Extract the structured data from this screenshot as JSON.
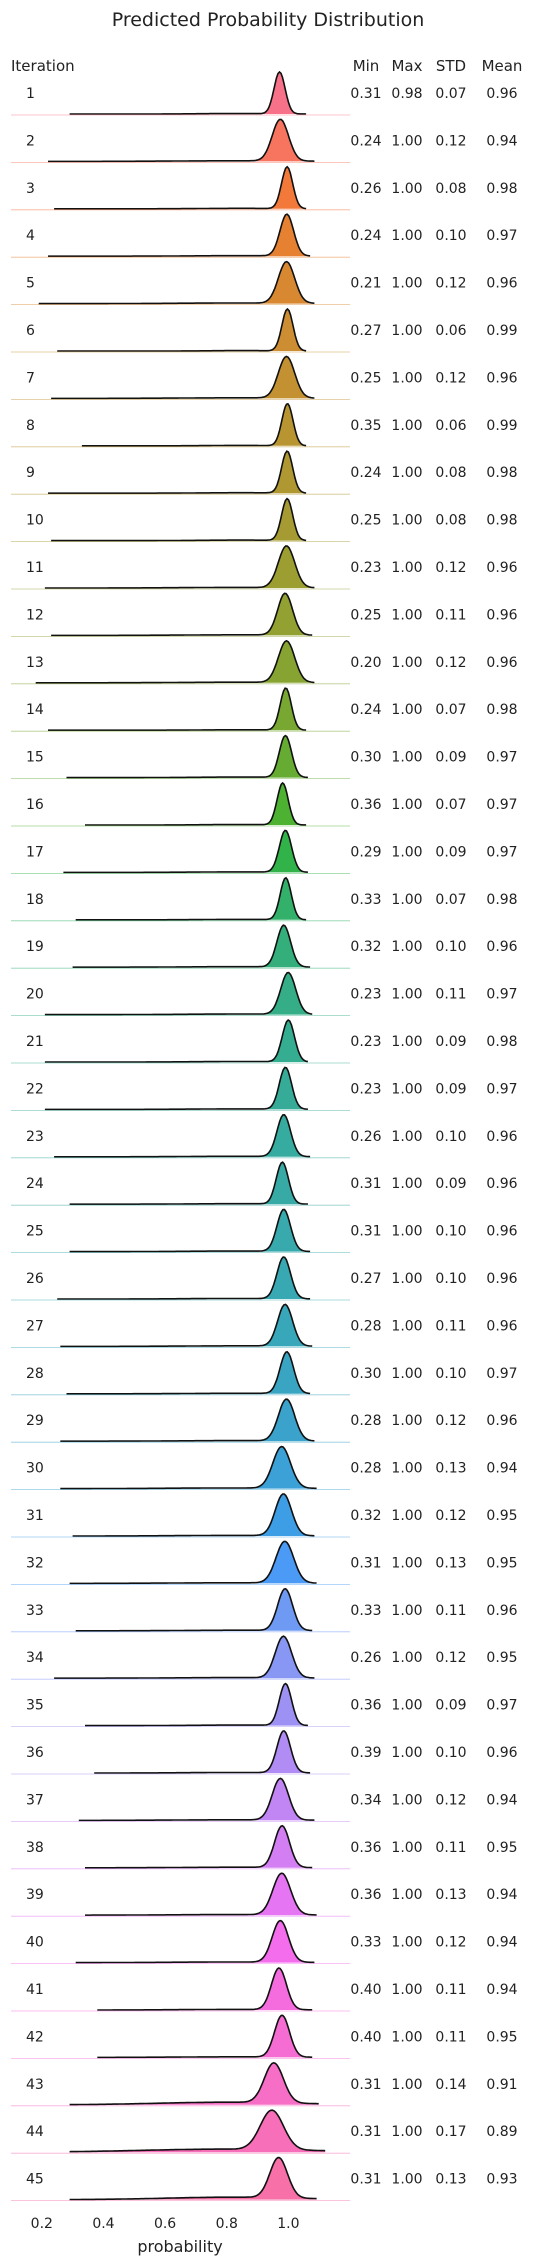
{
  "chart_data": {
    "type": "ridgeline",
    "title": "Predicted Probability Distribution",
    "xlabel": "probability",
    "ylabel": "Iteration",
    "xlim": [
      0.1,
      1.2
    ],
    "x_ticks": [
      0.2,
      0.4,
      0.6,
      0.8,
      1.0
    ],
    "x_tick_labels": [
      "0.2",
      "0.4",
      "0.6",
      "0.8",
      "1.0"
    ],
    "grid": false,
    "legend": "none",
    "stat_headers": [
      "Min",
      "Max",
      "STD",
      "Mean"
    ],
    "series": [
      {
        "label": "1",
        "min": 0.31,
        "max": 0.98,
        "std": 0.07,
        "mean": 0.96,
        "min_text": "0.31",
        "max_text": "0.98",
        "std_text": "0.07",
        "mean_text": "0.96",
        "color": "#f77189"
      },
      {
        "label": "2",
        "min": 0.24,
        "max": 1.0,
        "std": 0.12,
        "mean": 0.94,
        "min_text": "0.24",
        "max_text": "1.00",
        "std_text": "0.12",
        "mean_text": "0.94",
        "color": "#f7745f"
      },
      {
        "label": "3",
        "min": 0.26,
        "max": 1.0,
        "std": 0.08,
        "mean": 0.98,
        "min_text": "0.26",
        "max_text": "1.00",
        "std_text": "0.08",
        "mean_text": "0.98",
        "color": "#f2793a"
      },
      {
        "label": "4",
        "min": 0.24,
        "max": 1.0,
        "std": 0.1,
        "mean": 0.97,
        "min_text": "0.24",
        "max_text": "1.00",
        "std_text": "0.10",
        "mean_text": "0.97",
        "color": "#e68132"
      },
      {
        "label": "5",
        "min": 0.21,
        "max": 1.0,
        "std": 0.12,
        "mean": 0.96,
        "min_text": "0.21",
        "max_text": "1.00",
        "std_text": "0.12",
        "mean_text": "0.96",
        "color": "#d98832"
      },
      {
        "label": "6",
        "min": 0.27,
        "max": 1.0,
        "std": 0.06,
        "mean": 0.99,
        "min_text": "0.27",
        "max_text": "1.00",
        "std_text": "0.06",
        "mean_text": "0.99",
        "color": "#cd8d32"
      },
      {
        "label": "7",
        "min": 0.25,
        "max": 1.0,
        "std": 0.12,
        "mean": 0.96,
        "min_text": "0.25",
        "max_text": "1.00",
        "std_text": "0.12",
        "mean_text": "0.96",
        "color": "#c39132"
      },
      {
        "label": "8",
        "min": 0.35,
        "max": 1.0,
        "std": 0.06,
        "mean": 0.99,
        "min_text": "0.35",
        "max_text": "1.00",
        "std_text": "0.06",
        "mean_text": "0.99",
        "color": "#b99532"
      },
      {
        "label": "9",
        "min": 0.24,
        "max": 1.0,
        "std": 0.08,
        "mean": 0.98,
        "min_text": "0.24",
        "max_text": "1.00",
        "std_text": "0.08",
        "mean_text": "0.98",
        "color": "#af9832"
      },
      {
        "label": "10",
        "min": 0.25,
        "max": 1.0,
        "std": 0.08,
        "mean": 0.98,
        "min_text": "0.25",
        "max_text": "1.00",
        "std_text": "0.08",
        "mean_text": "0.98",
        "color": "#a59b32"
      },
      {
        "label": "11",
        "min": 0.23,
        "max": 1.0,
        "std": 0.12,
        "mean": 0.96,
        "min_text": "0.23",
        "max_text": "1.00",
        "std_text": "0.12",
        "mean_text": "0.96",
        "color": "#9c9e32"
      },
      {
        "label": "12",
        "min": 0.25,
        "max": 1.0,
        "std": 0.11,
        "mean": 0.96,
        "min_text": "0.25",
        "max_text": "1.00",
        "std_text": "0.11",
        "mean_text": "0.96",
        "color": "#92a132"
      },
      {
        "label": "13",
        "min": 0.2,
        "max": 1.0,
        "std": 0.12,
        "mean": 0.96,
        "min_text": "0.20",
        "max_text": "1.00",
        "std_text": "0.12",
        "mean_text": "0.96",
        "color": "#87a432"
      },
      {
        "label": "14",
        "min": 0.24,
        "max": 1.0,
        "std": 0.07,
        "mean": 0.98,
        "min_text": "0.24",
        "max_text": "1.00",
        "std_text": "0.07",
        "mean_text": "0.98",
        "color": "#79a832"
      },
      {
        "label": "15",
        "min": 0.3,
        "max": 1.0,
        "std": 0.09,
        "mean": 0.97,
        "min_text": "0.30",
        "max_text": "1.00",
        "std_text": "0.09",
        "mean_text": "0.97",
        "color": "#66ac32"
      },
      {
        "label": "16",
        "min": 0.36,
        "max": 1.0,
        "std": 0.07,
        "mean": 0.97,
        "min_text": "0.36",
        "max_text": "1.00",
        "std_text": "0.07",
        "mean_text": "0.97",
        "color": "#4db131"
      },
      {
        "label": "17",
        "min": 0.29,
        "max": 1.0,
        "std": 0.09,
        "mean": 0.97,
        "min_text": "0.29",
        "max_text": "1.00",
        "std_text": "0.09",
        "mean_text": "0.97",
        "color": "#32b34a"
      },
      {
        "label": "18",
        "min": 0.33,
        "max": 1.0,
        "std": 0.07,
        "mean": 0.98,
        "min_text": "0.33",
        "max_text": "1.00",
        "std_text": "0.07",
        "mean_text": "0.98",
        "color": "#33b16a"
      },
      {
        "label": "19",
        "min": 0.32,
        "max": 1.0,
        "std": 0.1,
        "mean": 0.96,
        "min_text": "0.32",
        "max_text": "1.00",
        "std_text": "0.10",
        "mean_text": "0.96",
        "color": "#34af7b"
      },
      {
        "label": "20",
        "min": 0.23,
        "max": 1.0,
        "std": 0.11,
        "mean": 0.97,
        "min_text": "0.23",
        "max_text": "1.00",
        "std_text": "0.11",
        "mean_text": "0.97",
        "color": "#35ae87"
      },
      {
        "label": "21",
        "min": 0.23,
        "max": 1.0,
        "std": 0.09,
        "mean": 0.98,
        "min_text": "0.23",
        "max_text": "1.00",
        "std_text": "0.09",
        "mean_text": "0.98",
        "color": "#35ad90"
      },
      {
        "label": "22",
        "min": 0.23,
        "max": 1.0,
        "std": 0.09,
        "mean": 0.97,
        "min_text": "0.23",
        "max_text": "1.00",
        "std_text": "0.09",
        "mean_text": "0.97",
        "color": "#36ac98"
      },
      {
        "label": "23",
        "min": 0.26,
        "max": 1.0,
        "std": 0.1,
        "mean": 0.96,
        "min_text": "0.26",
        "max_text": "1.00",
        "std_text": "0.10",
        "mean_text": "0.96",
        "color": "#36ab9f"
      },
      {
        "label": "24",
        "min": 0.31,
        "max": 1.0,
        "std": 0.09,
        "mean": 0.96,
        "min_text": "0.31",
        "max_text": "1.00",
        "std_text": "0.09",
        "mean_text": "0.96",
        "color": "#37aaa6"
      },
      {
        "label": "25",
        "min": 0.31,
        "max": 1.0,
        "std": 0.1,
        "mean": 0.96,
        "min_text": "0.31",
        "max_text": "1.00",
        "std_text": "0.10",
        "mean_text": "0.96",
        "color": "#38a9ac"
      },
      {
        "label": "26",
        "min": 0.27,
        "max": 1.0,
        "std": 0.1,
        "mean": 0.96,
        "min_text": "0.27",
        "max_text": "1.00",
        "std_text": "0.10",
        "mean_text": "0.96",
        "color": "#38a8b3"
      },
      {
        "label": "27",
        "min": 0.28,
        "max": 1.0,
        "std": 0.11,
        "mean": 0.96,
        "min_text": "0.28",
        "max_text": "1.00",
        "std_text": "0.11",
        "mean_text": "0.96",
        "color": "#39a7ba"
      },
      {
        "label": "28",
        "min": 0.3,
        "max": 1.0,
        "std": 0.1,
        "mean": 0.97,
        "min_text": "0.30",
        "max_text": "1.00",
        "std_text": "0.10",
        "mean_text": "0.97",
        "color": "#3aa5c2"
      },
      {
        "label": "29",
        "min": 0.28,
        "max": 1.0,
        "std": 0.12,
        "mean": 0.96,
        "min_text": "0.28",
        "max_text": "1.00",
        "std_text": "0.12",
        "mean_text": "0.96",
        "color": "#3ba3cb"
      },
      {
        "label": "30",
        "min": 0.28,
        "max": 1.0,
        "std": 0.13,
        "mean": 0.94,
        "min_text": "0.28",
        "max_text": "1.00",
        "std_text": "0.13",
        "mean_text": "0.94",
        "color": "#3ca1d6"
      },
      {
        "label": "31",
        "min": 0.32,
        "max": 1.0,
        "std": 0.12,
        "mean": 0.95,
        "min_text": "0.32",
        "max_text": "1.00",
        "std_text": "0.12",
        "mean_text": "0.95",
        "color": "#3e9ee5"
      },
      {
        "label": "32",
        "min": 0.31,
        "max": 1.0,
        "std": 0.13,
        "mean": 0.95,
        "min_text": "0.31",
        "max_text": "1.00",
        "std_text": "0.13",
        "mean_text": "0.95",
        "color": "#4b9af5"
      },
      {
        "label": "33",
        "min": 0.33,
        "max": 1.0,
        "std": 0.11,
        "mean": 0.96,
        "min_text": "0.33",
        "max_text": "1.00",
        "std_text": "0.11",
        "mean_text": "0.96",
        "color": "#6e9af4"
      },
      {
        "label": "34",
        "min": 0.26,
        "max": 1.0,
        "std": 0.12,
        "mean": 0.95,
        "min_text": "0.26",
        "max_text": "1.00",
        "std_text": "0.12",
        "mean_text": "0.95",
        "color": "#8896f4"
      },
      {
        "label": "35",
        "min": 0.36,
        "max": 1.0,
        "std": 0.09,
        "mean": 0.97,
        "min_text": "0.36",
        "max_text": "1.00",
        "std_text": "0.09",
        "mean_text": "0.97",
        "color": "#9d91f4"
      },
      {
        "label": "36",
        "min": 0.39,
        "max": 1.0,
        "std": 0.1,
        "mean": 0.96,
        "min_text": "0.39",
        "max_text": "1.00",
        "std_text": "0.10",
        "mean_text": "0.96",
        "color": "#b08cf4"
      },
      {
        "label": "37",
        "min": 0.34,
        "max": 1.0,
        "std": 0.12,
        "mean": 0.94,
        "min_text": "0.34",
        "max_text": "1.00",
        "std_text": "0.12",
        "mean_text": "0.94",
        "color": "#c285f4"
      },
      {
        "label": "38",
        "min": 0.36,
        "max": 1.0,
        "std": 0.11,
        "mean": 0.95,
        "min_text": "0.36",
        "max_text": "1.00",
        "std_text": "0.11",
        "mean_text": "0.95",
        "color": "#d47ef4"
      },
      {
        "label": "39",
        "min": 0.36,
        "max": 1.0,
        "std": 0.13,
        "mean": 0.94,
        "min_text": "0.36",
        "max_text": "1.00",
        "std_text": "0.13",
        "mean_text": "0.94",
        "color": "#e675f4"
      },
      {
        "label": "40",
        "min": 0.33,
        "max": 1.0,
        "std": 0.12,
        "mean": 0.94,
        "min_text": "0.33",
        "max_text": "1.00",
        "std_text": "0.12",
        "mean_text": "0.94",
        "color": "#f36ded"
      },
      {
        "label": "41",
        "min": 0.4,
        "max": 1.0,
        "std": 0.11,
        "mean": 0.94,
        "min_text": "0.40",
        "max_text": "1.00",
        "std_text": "0.11",
        "mean_text": "0.94",
        "color": "#f56cdf"
      },
      {
        "label": "42",
        "min": 0.4,
        "max": 1.0,
        "std": 0.11,
        "mean": 0.95,
        "min_text": "0.40",
        "max_text": "1.00",
        "std_text": "0.11",
        "mean_text": "0.95",
        "color": "#f56dd2"
      },
      {
        "label": "43",
        "min": 0.31,
        "max": 1.0,
        "std": 0.14,
        "mean": 0.91,
        "min_text": "0.31",
        "max_text": "1.00",
        "std_text": "0.14",
        "mean_text": "0.91",
        "color": "#f66ec5"
      },
      {
        "label": "44",
        "min": 0.31,
        "max": 1.0,
        "std": 0.17,
        "mean": 0.89,
        "min_text": "0.31",
        "max_text": "1.00",
        "std_text": "0.17",
        "mean_text": "0.89",
        "color": "#f66fb8"
      },
      {
        "label": "45",
        "min": 0.31,
        "max": 1.0,
        "std": 0.13,
        "mean": 0.93,
        "min_text": "0.31",
        "max_text": "1.00",
        "std_text": "0.13",
        "mean_text": "0.93",
        "color": "#f770a8"
      }
    ]
  }
}
